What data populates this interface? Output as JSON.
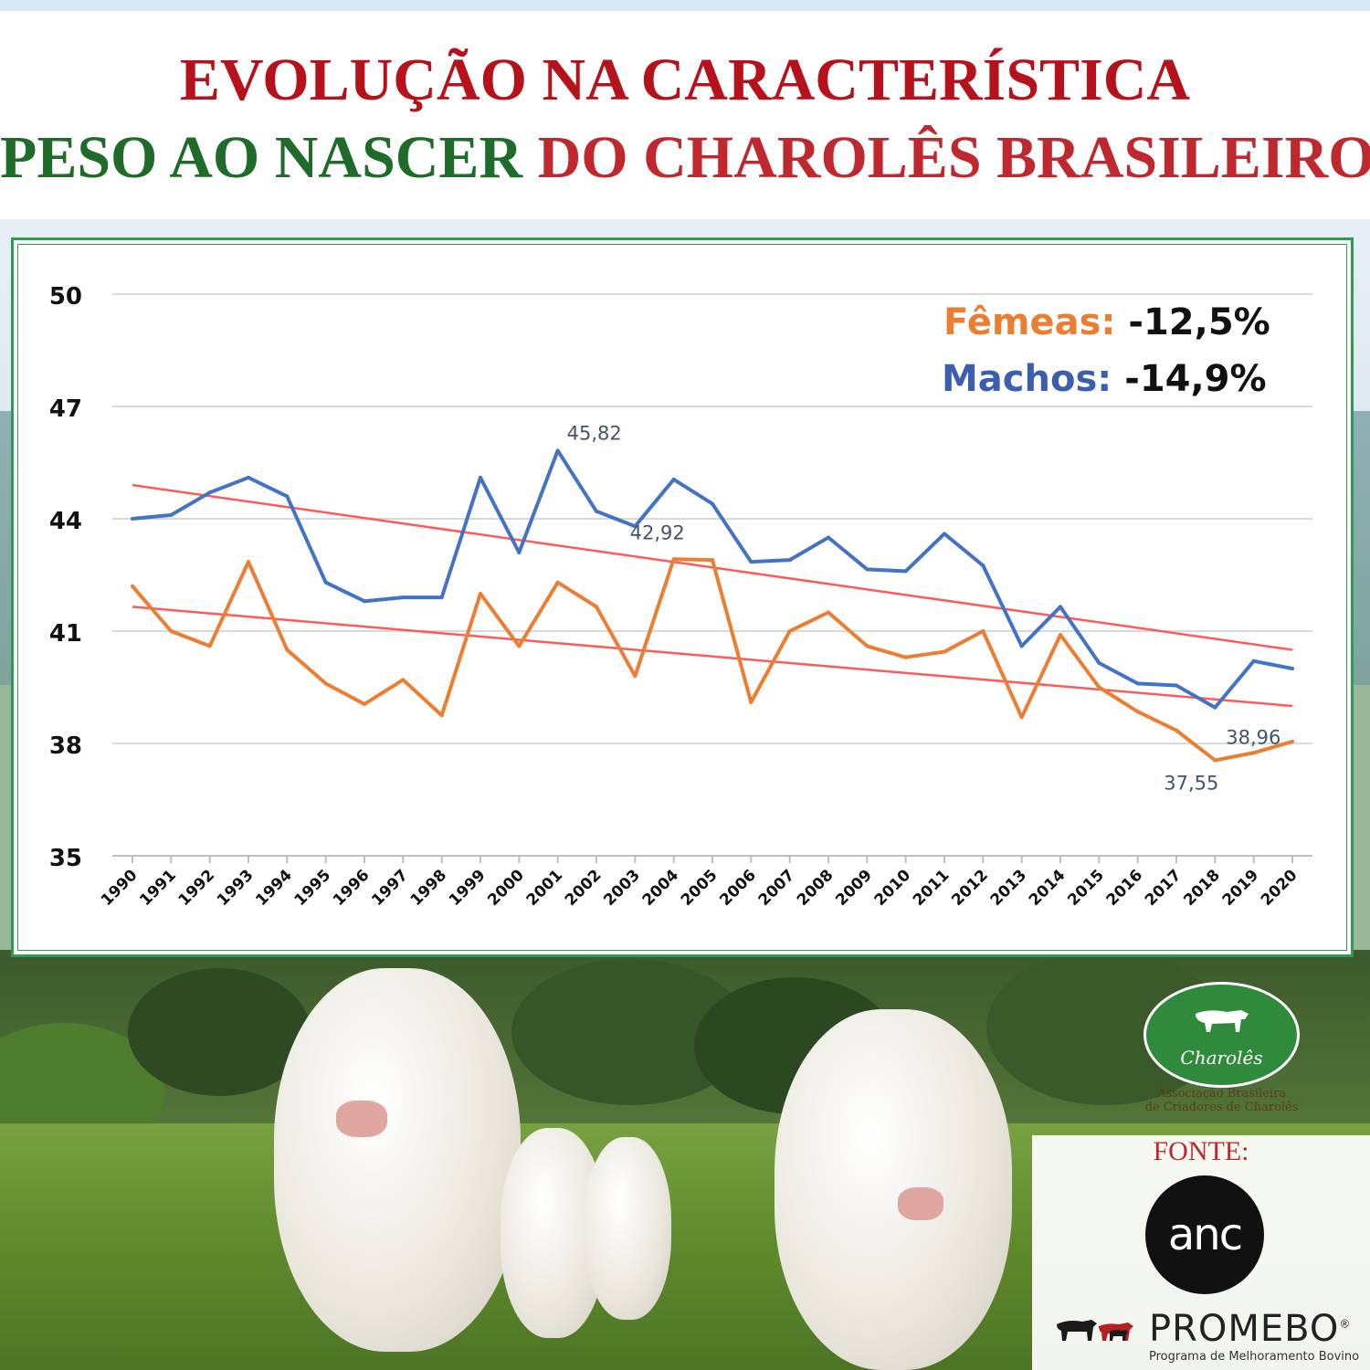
{
  "title": {
    "line1": "EVOLUÇÃO NA CARACTERÍSTICA",
    "line2_green": "PESO AO NASCER",
    "line2_red": "DO CHAROLÊS BRASILEIRO"
  },
  "summary": {
    "female_label": "Fêmeas:",
    "female_value": "-12,5%",
    "male_label": "Machos:",
    "male_value": "-14,9%"
  },
  "colors": {
    "female": "#ed7d31",
    "male": "#4472c4",
    "trend": "#ff5a5a"
  },
  "chart_data": {
    "type": "line",
    "title": "",
    "xlabel": "",
    "ylabel": "",
    "ylim": [
      35,
      50
    ],
    "yticks": [
      "50",
      "47",
      "44",
      "41",
      "38",
      "35"
    ],
    "grid": true,
    "x": [
      "1990",
      "1991",
      "1992",
      "1993",
      "1994",
      "1995",
      "1996",
      "1997",
      "1998",
      "1999",
      "2000",
      "2001",
      "2002",
      "2003",
      "2004",
      "2005",
      "2006",
      "2007",
      "2008",
      "2009",
      "2010",
      "2011",
      "2012",
      "2013",
      "2014",
      "2015",
      "2016",
      "2017",
      "2018",
      "2019",
      "2020"
    ],
    "series": [
      {
        "name": "Machos",
        "color": "#4472c4",
        "values": [
          44.0,
          44.1,
          44.7,
          45.1,
          44.6,
          42.3,
          41.8,
          41.9,
          41.9,
          45.1,
          43.1,
          45.82,
          44.2,
          43.8,
          45.05,
          44.4,
          42.85,
          42.9,
          43.5,
          42.65,
          42.6,
          43.6,
          42.75,
          40.6,
          41.65,
          40.15,
          39.6,
          39.55,
          38.96,
          40.2,
          40.0
        ]
      },
      {
        "name": "Fêmeas",
        "color": "#ed7d31",
        "values": [
          42.2,
          41.0,
          40.6,
          42.85,
          40.5,
          39.6,
          39.05,
          39.7,
          38.75,
          42.0,
          40.6,
          42.3,
          41.65,
          39.8,
          42.92,
          42.9,
          39.1,
          41.0,
          41.5,
          40.6,
          40.3,
          40.45,
          41.0,
          38.7,
          40.9,
          39.5,
          38.85,
          38.35,
          37.55,
          37.75,
          38.05
        ]
      }
    ],
    "trendlines": [
      {
        "series": "Machos",
        "start": 44.9,
        "end": 40.5
      },
      {
        "series": "Fêmeas",
        "start": 41.65,
        "end": 39.0
      }
    ],
    "data_labels": [
      {
        "series": "Machos",
        "x": "2001",
        "value": "45,82"
      },
      {
        "series": "Fêmeas",
        "x": "2004",
        "value": "42,92"
      },
      {
        "series": "Machos",
        "x": "2018",
        "value": "38,96"
      },
      {
        "series": "Fêmeas",
        "x": "2018",
        "value": "37,55"
      }
    ]
  },
  "logo": {
    "name": "Charolês",
    "association_line1": "Associação Brasileira",
    "association_line2": "de Criadores de Charolês"
  },
  "source": {
    "label": "FONTE:",
    "anc": "anc",
    "promebo": "PROMEBO",
    "promebo_mark": "®",
    "promebo_subtitle": "Programa de Melhoramento Bovino"
  }
}
